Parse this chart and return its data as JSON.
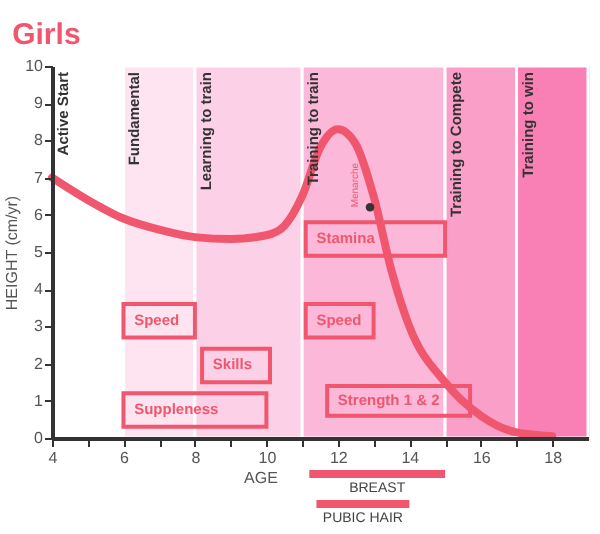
{
  "chart_data": {
    "type": "line",
    "title": "Girls",
    "xlabel": "AGE",
    "ylabel": "HEIGHT (cm/yr)",
    "x": [
      4,
      5,
      6,
      7,
      8,
      9,
      10,
      10.5,
      11,
      11.5,
      12,
      12.5,
      13,
      13.5,
      14,
      15,
      16,
      17,
      18
    ],
    "series": [
      {
        "color": "#f0566e",
        "values": [
          7,
          6.4,
          5.9,
          5.6,
          5.4,
          5.35,
          5.45,
          5.7,
          6.5,
          7.8,
          8.3,
          7.9,
          6.5,
          4.5,
          3,
          1.5,
          0.6,
          0.15,
          0.05
        ]
      }
    ],
    "xlim": [
      4,
      19
    ],
    "ylim": [
      0,
      10
    ],
    "xticks": [
      4,
      {
        "value": 5,
        "label": null
      },
      6,
      {
        "value": 7,
        "label": null
      },
      8,
      {
        "value": 9,
        "label": null
      },
      10,
      {
        "value": 11,
        "label": null
      },
      12,
      {
        "value": 13,
        "label": null
      },
      14,
      {
        "value": 15,
        "label": null
      },
      16,
      {
        "value": 17,
        "label": null
      },
      18
    ],
    "yticks": [
      0,
      1,
      2,
      3,
      4,
      5,
      6,
      7,
      8,
      9,
      10
    ],
    "bands": [
      {
        "axis": "x",
        "from": 4,
        "to": 6,
        "label": "Active Start",
        "color": "#ffffff"
      },
      {
        "axis": "x",
        "from": 6,
        "to": 8,
        "label": "Fundamental",
        "color": "#fde4f0"
      },
      {
        "axis": "x",
        "from": 8,
        "to": 11,
        "label": "Learning to train",
        "color": "#fcd0e6"
      },
      {
        "axis": "x",
        "from": 11,
        "to": 15,
        "label": "Training to train",
        "color": "#fbb8d8"
      },
      {
        "axis": "x",
        "from": 15,
        "to": 17,
        "label": "Training to  Compete",
        "color": "#fa9fc8"
      },
      {
        "axis": "x",
        "from": 17,
        "to": 19,
        "label": "Training to win",
        "color": "#f880b5"
      }
    ],
    "annotations": [
      "Speed",
      "Skills",
      "Suppleness",
      "Stamina",
      "Speed",
      "Strength 1 & 2",
      "BREAST",
      "PUBIC HAIR",
      {
        "text": "Menarche",
        "x": 12.9,
        "y": 6.2
      }
    ],
    "grid": false,
    "marker": "none",
    "line_style": "solid"
  }
}
